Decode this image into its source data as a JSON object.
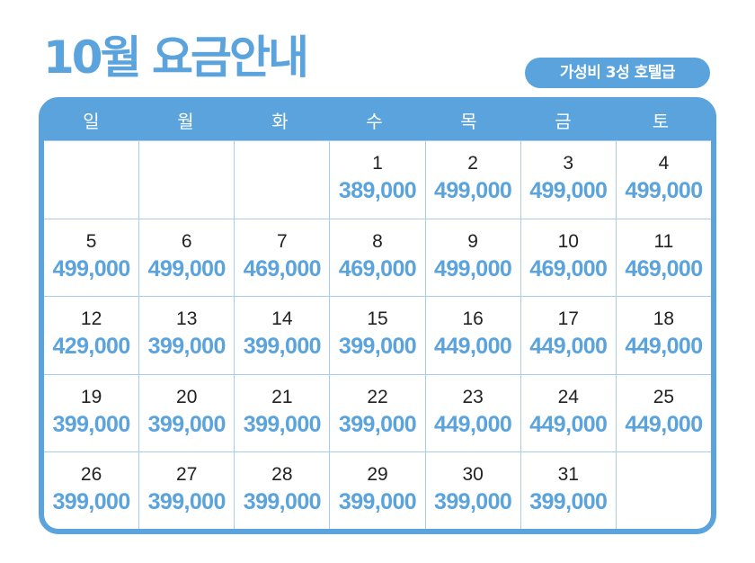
{
  "header": {
    "title": "10월 요금안내",
    "badge": "가성비 3성 호텔급"
  },
  "calendar": {
    "weekdays": [
      "일",
      "월",
      "화",
      "수",
      "목",
      "금",
      "토"
    ],
    "cells": [
      {
        "day": "",
        "price": ""
      },
      {
        "day": "",
        "price": ""
      },
      {
        "day": "",
        "price": ""
      },
      {
        "day": "1",
        "price": "389,000"
      },
      {
        "day": "2",
        "price": "499,000"
      },
      {
        "day": "3",
        "price": "499,000"
      },
      {
        "day": "4",
        "price": "499,000"
      },
      {
        "day": "5",
        "price": "499,000"
      },
      {
        "day": "6",
        "price": "499,000"
      },
      {
        "day": "7",
        "price": "469,000"
      },
      {
        "day": "8",
        "price": "469,000"
      },
      {
        "day": "9",
        "price": "499,000"
      },
      {
        "day": "10",
        "price": "469,000"
      },
      {
        "day": "11",
        "price": "469,000"
      },
      {
        "day": "12",
        "price": "429,000"
      },
      {
        "day": "13",
        "price": "399,000"
      },
      {
        "day": "14",
        "price": "399,000"
      },
      {
        "day": "15",
        "price": "399,000"
      },
      {
        "day": "16",
        "price": "449,000"
      },
      {
        "day": "17",
        "price": "449,000"
      },
      {
        "day": "18",
        "price": "449,000"
      },
      {
        "day": "19",
        "price": "399,000"
      },
      {
        "day": "20",
        "price": "399,000"
      },
      {
        "day": "21",
        "price": "399,000"
      },
      {
        "day": "22",
        "price": "399,000"
      },
      {
        "day": "23",
        "price": "449,000"
      },
      {
        "day": "24",
        "price": "449,000"
      },
      {
        "day": "25",
        "price": "449,000"
      },
      {
        "day": "26",
        "price": "399,000"
      },
      {
        "day": "27",
        "price": "399,000"
      },
      {
        "day": "28",
        "price": "399,000"
      },
      {
        "day": "29",
        "price": "399,000"
      },
      {
        "day": "30",
        "price": "399,000"
      },
      {
        "day": "31",
        "price": "399,000"
      },
      {
        "day": "",
        "price": ""
      }
    ]
  },
  "colors": {
    "accent": "#5aa3dd",
    "grid_line": "#a8ccec",
    "day_text": "#222222"
  }
}
